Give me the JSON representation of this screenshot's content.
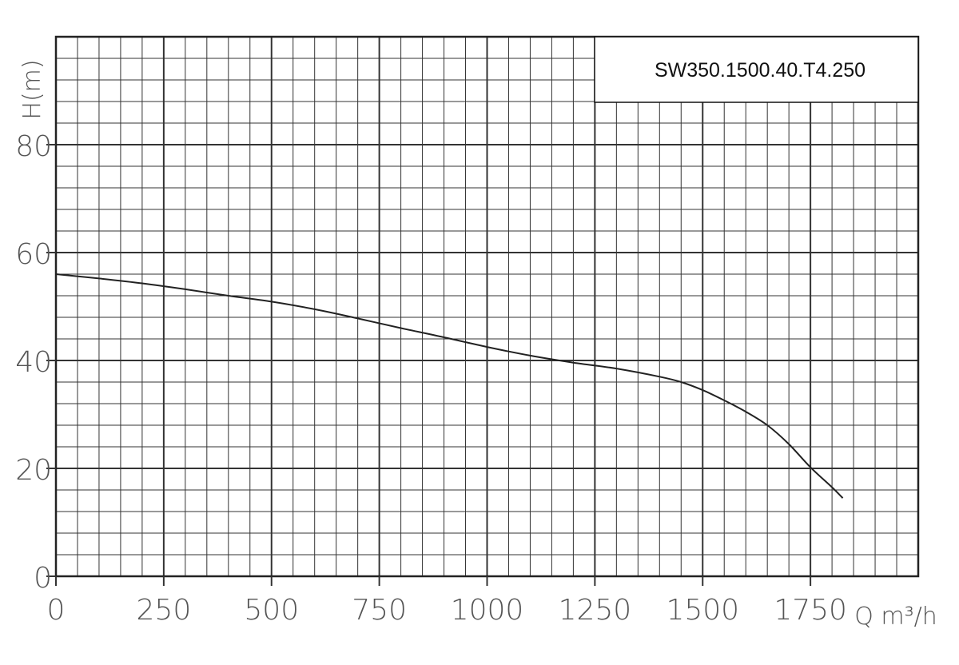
{
  "chart_data": {
    "type": "line",
    "title": "SW350.1500.40.T4.250",
    "xlabel": "Q m³/h",
    "ylabel": "H(m)",
    "xlim": [
      0,
      2000
    ],
    "ylim": [
      0,
      100
    ],
    "x_ticks": [
      "0",
      "250",
      "500",
      "750",
      "1000",
      "1250",
      "1500",
      "1750"
    ],
    "y_ticks": [
      "0",
      "20",
      "40",
      "60",
      "80"
    ],
    "grid": true,
    "series": [
      {
        "x": [
          0,
          100,
          200,
          300,
          400,
          500,
          600,
          700,
          800,
          900,
          1000,
          1100,
          1200,
          1300,
          1400,
          1450,
          1500,
          1550,
          1600,
          1650,
          1700,
          1750,
          1800,
          1825
        ],
        "values": [
          56,
          55.2,
          54.3,
          53.2,
          52.0,
          50.9,
          49.5,
          47.8,
          46.0,
          44.3,
          42.5,
          40.9,
          39.6,
          38.5,
          37.0,
          36.0,
          34.5,
          32.6,
          30.5,
          28.0,
          24.5,
          20.2,
          16.5,
          14.5
        ]
      }
    ]
  }
}
